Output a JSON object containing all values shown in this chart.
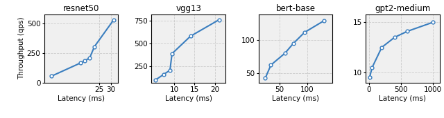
{
  "subplots": [
    {
      "title": "resnet50",
      "xlabel": "Latency (ms)",
      "x": [
        5,
        17,
        19,
        21,
        23,
        31
      ],
      "y": [
        55,
        165,
        185,
        210,
        305,
        530
      ],
      "xlim": [
        2,
        33
      ],
      "xticks": [
        25,
        30
      ],
      "ylim": [
        0,
        580
      ],
      "yticks": [
        0,
        250,
        500
      ]
    },
    {
      "title": "vgg13",
      "xlabel": "Latency (ms)",
      "x": [
        5.5,
        7.5,
        9,
        9.5,
        14,
        21
      ],
      "y": [
        105,
        165,
        210,
        390,
        580,
        760
      ],
      "xlim": [
        4.5,
        22.5
      ],
      "xticks": [
        10,
        15,
        20
      ],
      "ylim": [
        75,
        820
      ],
      "yticks": [
        250,
        500,
        750
      ]
    },
    {
      "title": "bert-base",
      "xlabel": "Latency (ms)",
      "x": [
        25,
        35,
        60,
        75,
        95,
        130
      ],
      "y": [
        42,
        62,
        80,
        95,
        112,
        130
      ],
      "xlim": [
        13,
        145
      ],
      "xticks": [
        50,
        100
      ],
      "ylim": [
        35,
        140
      ],
      "yticks": [
        50,
        100
      ]
    },
    {
      "title": "gpt2-medium",
      "xlabel": "Latency (ms)",
      "x": [
        10,
        50,
        200,
        400,
        600,
        1000
      ],
      "y": [
        9.5,
        10.5,
        12.5,
        13.5,
        14.1,
        15.0
      ],
      "xlim": [
        -50,
        1100
      ],
      "xticks": [
        0,
        500,
        1000
      ],
      "ylim": [
        9.0,
        15.8
      ],
      "yticks": [
        10,
        15
      ]
    }
  ],
  "ylabel": "Throughput (qps)",
  "line_color": "#3a7ebf",
  "marker": "o",
  "markersize": 3.5,
  "markerfacecolor": "white",
  "linewidth": 1.5,
  "grid_color": "#cccccc",
  "grid_linestyle": "--",
  "grid_linewidth": 0.6,
  "figure_width": 6.4,
  "figure_height": 1.71,
  "bg_color": "#f0f0f0"
}
